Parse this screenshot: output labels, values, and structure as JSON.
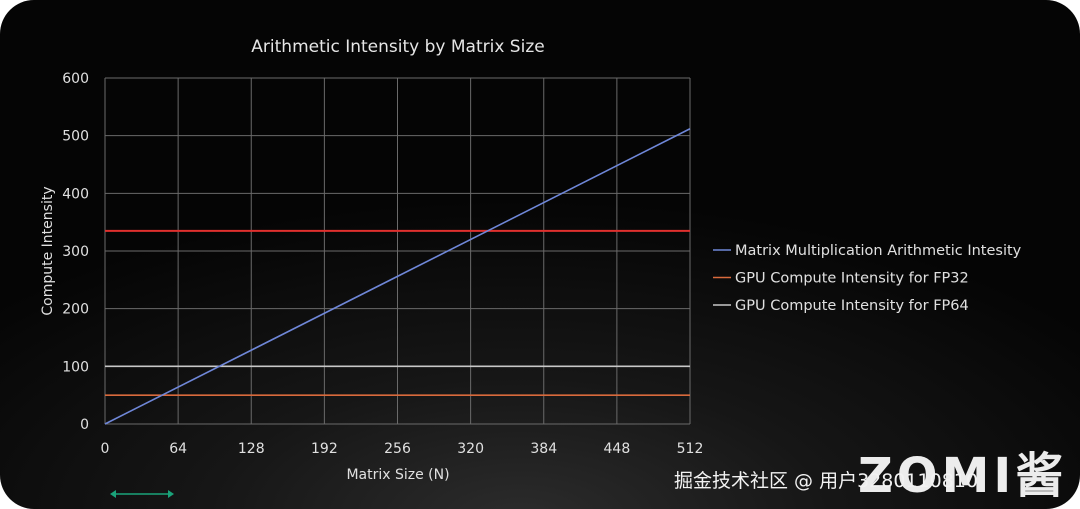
{
  "chart_data": {
    "type": "line",
    "title": "Arithmetic Intensity by Matrix Size",
    "xlabel": "Matrix Size (N)",
    "ylabel": "Compute Intensity",
    "xlim": [
      0,
      512
    ],
    "ylim": [
      0,
      600
    ],
    "xticks": [
      0,
      64,
      128,
      192,
      256,
      320,
      384,
      448,
      512
    ],
    "yticks": [
      0,
      100,
      200,
      300,
      400,
      500,
      600
    ],
    "grid": true,
    "legend_position": "right",
    "series": [
      {
        "name": "Matrix Multiplication Arithmetic Intesity",
        "color": "#6f87d8",
        "x": [
          0,
          512
        ],
        "y": [
          0,
          512
        ]
      },
      {
        "name": "GPU Compute Intensity for FP32",
        "color": "#d96a3c",
        "x": [
          0,
          512
        ],
        "y": [
          50,
          50
        ]
      },
      {
        "name": "GPU Compute Intensity for FP64",
        "color": "#c8c8c8",
        "x": [
          0,
          512
        ],
        "y": [
          100,
          100
        ]
      }
    ],
    "reference_lines": [
      {
        "color": "#e0302e",
        "y": 335
      }
    ]
  },
  "watermark": {
    "text": "掘金技术社区 @ 用户3280110810"
  },
  "logo": {
    "text": "ZOMI酱"
  },
  "colors": {
    "background": "#0a0a0a",
    "gridline": "#6a6a6a",
    "text": "#e0e0e0",
    "decor_arrow": "#1aa37a"
  }
}
